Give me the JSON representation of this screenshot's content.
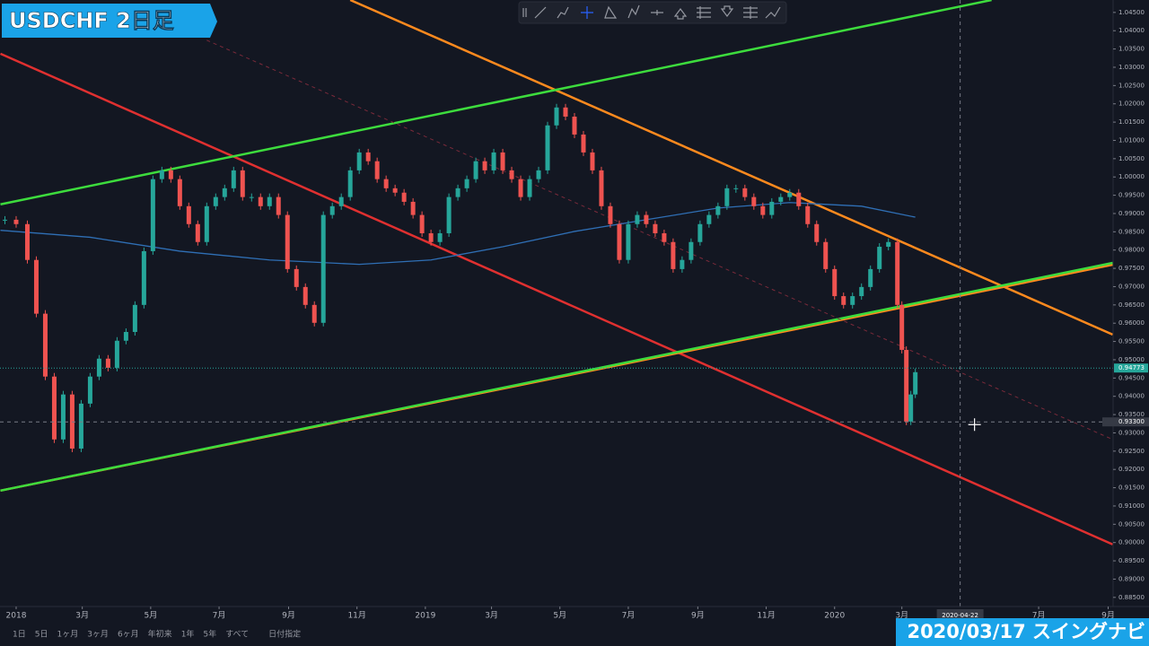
{
  "overlay_title": "USDCHF 2日足",
  "caption": "2020/03/17 スイングナビ",
  "bottom_bar": [
    "1日",
    "5日",
    "1ヶ月",
    "3ヶ月",
    "6ヶ月",
    "年初来",
    "1年",
    "5年",
    "すべて",
    "日付指定"
  ],
  "chart_data": {
    "type": "candlestick",
    "up_color": "#26a69a",
    "down_color": "#ef5350",
    "x": [
      -10,
      0,
      10,
      18,
      26,
      34,
      42,
      50,
      58,
      66,
      74,
      82,
      90,
      98,
      106,
      114,
      122,
      130,
      138,
      146,
      154,
      162,
      170,
      178,
      186,
      194,
      202,
      210,
      218,
      226,
      234,
      242,
      250,
      258,
      266,
      274,
      282,
      290,
      298,
      306,
      314,
      322,
      330,
      338,
      346,
      354,
      362,
      370,
      378,
      386,
      394,
      402,
      410,
      418,
      426,
      434,
      442,
      450,
      458,
      466,
      474,
      482,
      490,
      498,
      506,
      514,
      522,
      530,
      538,
      546,
      554,
      562,
      570,
      578,
      586,
      594,
      602,
      610,
      618,
      626,
      634,
      642,
      650,
      658,
      666,
      674,
      682,
      690,
      698,
      706,
      714,
      722,
      730,
      738,
      746,
      754,
      762,
      770,
      778,
      786,
      790,
      794,
      798,
      802
    ],
    "values": [
      0.9883,
      0.9871,
      0.9773,
      0.9626,
      0.9454,
      0.9282,
      0.9405,
      0.9257,
      0.938,
      0.9454,
      0.9503,
      0.9478,
      0.9552,
      0.9576,
      0.965,
      0.9797,
      0.9994,
      1.0018,
      0.9994,
      0.992,
      0.9871,
      0.9822,
      0.992,
      0.9945,
      0.9969,
      1.0018,
      0.9945,
      0.9945,
      0.992,
      0.9945,
      0.9896,
      0.9748,
      0.9699,
      0.965,
      0.9601,
      0.9896,
      0.992,
      0.9945,
      1.0018,
      1.0067,
      1.0043,
      0.9994,
      0.9969,
      0.9957,
      0.9932,
      0.9896,
      0.9846,
      0.9822,
      0.9846,
      0.9945,
      0.9969,
      0.9994,
      1.0043,
      1.0018,
      1.0067,
      1.0018,
      0.9994,
      0.9945,
      0.9994,
      1.0018,
      1.0141,
      1.019,
      1.0165,
      1.0116,
      1.0067,
      1.0018,
      0.992,
      0.9871,
      0.9773,
      0.9871,
      0.9896,
      0.9871,
      0.9846,
      0.9822,
      0.9748,
      0.9773,
      0.9822,
      0.9871,
      0.9896,
      0.992,
      0.9969,
      0.9969,
      0.9945,
      0.992,
      0.9896,
      0.9932,
      0.9945,
      0.9957,
      0.992,
      0.9871,
      0.9822,
      0.9748,
      0.9674,
      0.965,
      0.9674,
      0.9699,
      0.9748,
      0.9809,
      0.9822,
      0.965,
      0.9527,
      0.9331,
      0.9405,
      0.9466
    ],
    "moving_average": {
      "color": "#2f6fb5",
      "x": [
        -14,
        66,
        146,
        226,
        306,
        370,
        434,
        498,
        562,
        626,
        690,
        754,
        802
      ],
      "values": [
        0.9854,
        0.9835,
        0.9797,
        0.9773,
        0.9761,
        0.9773,
        0.9809,
        0.9851,
        0.9883,
        0.9915,
        0.993,
        0.992,
        0.989
      ]
    },
    "trendlines": [
      {
        "color": "#e03030",
        "x": [
          -14,
          978
        ],
        "values": [
          1.0337,
          0.8995
        ]
      },
      {
        "color": "#ff8a1e",
        "x": [
          298,
          978
        ],
        "values": [
          1.0484,
          0.9569
        ]
      },
      {
        "color": "#ff8a1e",
        "x": [
          -14,
          978
        ],
        "values": [
          0.9142,
          0.976
        ]
      },
      {
        "color": "#3ddc3d",
        "x": [
          -14,
          978
        ],
        "values": [
          0.9142,
          0.9765
        ]
      },
      {
        "color": "#3ddc3d",
        "x": [
          -14,
          870
        ],
        "values": [
          0.9925,
          1.0484
        ]
      },
      {
        "color": "#7a2a3a",
        "dashed": true,
        "x": [
          170,
          978
        ],
        "values": [
          1.0374,
          0.9282
        ]
      }
    ],
    "last_price": {
      "value": 0.94773,
      "label": "0.94773",
      "color": "#26a69a"
    },
    "crosshair": {
      "x": 842,
      "x_label": "2020-04-22",
      "y": 0.933,
      "y_label": "0.93300"
    },
    "xlim": [
      -14.4,
      978.4
    ],
    "ylim": [
      0.8825,
      1.0484
    ],
    "xticks": [
      {
        "value": 0,
        "label": "2018"
      },
      {
        "value": 59,
        "label": "3月"
      },
      {
        "value": 120,
        "label": "5月"
      },
      {
        "value": 181,
        "label": "7月"
      },
      {
        "value": 243,
        "label": "9月"
      },
      {
        "value": 304,
        "label": "11月"
      },
      {
        "value": 365,
        "label": "2019"
      },
      {
        "value": 424,
        "label": "3月"
      },
      {
        "value": 485,
        "label": "5月"
      },
      {
        "value": 546,
        "label": "7月"
      },
      {
        "value": 608,
        "label": "9月"
      },
      {
        "value": 669,
        "label": "11月"
      },
      {
        "value": 730,
        "label": "2020"
      },
      {
        "value": 790,
        "label": "3月"
      },
      {
        "value": 912,
        "label": "7月"
      },
      {
        "value": 974,
        "label": "9月"
      }
    ],
    "yticks": [
      {
        "value": 1.045,
        "label": "1.04500"
      },
      {
        "value": 1.04,
        "label": "1.04000"
      },
      {
        "value": 1.035,
        "label": "1.03500"
      },
      {
        "value": 1.03,
        "label": "1.03000"
      },
      {
        "value": 1.025,
        "label": "1.02500"
      },
      {
        "value": 1.02,
        "label": "1.02000"
      },
      {
        "value": 1.015,
        "label": "1.01500"
      },
      {
        "value": 1.01,
        "label": "1.01000"
      },
      {
        "value": 1.005,
        "label": "1.00500"
      },
      {
        "value": 1,
        "label": "1.00000"
      },
      {
        "value": 0.995,
        "label": "0.99500"
      },
      {
        "value": 0.99,
        "label": "0.99000"
      },
      {
        "value": 0.985,
        "label": "0.98500"
      },
      {
        "value": 0.98,
        "label": "0.98000"
      },
      {
        "value": 0.975,
        "label": "0.97500"
      },
      {
        "value": 0.97,
        "label": "0.97000"
      },
      {
        "value": 0.965,
        "label": "0.96500"
      },
      {
        "value": 0.96,
        "label": "0.96000"
      },
      {
        "value": 0.955,
        "label": "0.95500"
      },
      {
        "value": 0.95,
        "label": "0.95000"
      },
      {
        "value": 0.945,
        "label": "0.94500"
      },
      {
        "value": 0.94,
        "label": "0.94000"
      },
      {
        "value": 0.935,
        "label": "0.93500"
      },
      {
        "value": 0.93,
        "label": "0.93000"
      },
      {
        "value": 0.925,
        "label": "0.92500"
      },
      {
        "value": 0.92,
        "label": "0.92000"
      },
      {
        "value": 0.915,
        "label": "0.91500"
      },
      {
        "value": 0.91,
        "label": "0.91000"
      },
      {
        "value": 0.905,
        "label": "0.90500"
      },
      {
        "value": 0.9,
        "label": "0.90000"
      },
      {
        "value": 0.895,
        "label": "0.89500"
      },
      {
        "value": 0.89,
        "label": "0.89000"
      },
      {
        "value": 0.885,
        "label": "0.88500"
      }
    ],
    "grid": false
  }
}
